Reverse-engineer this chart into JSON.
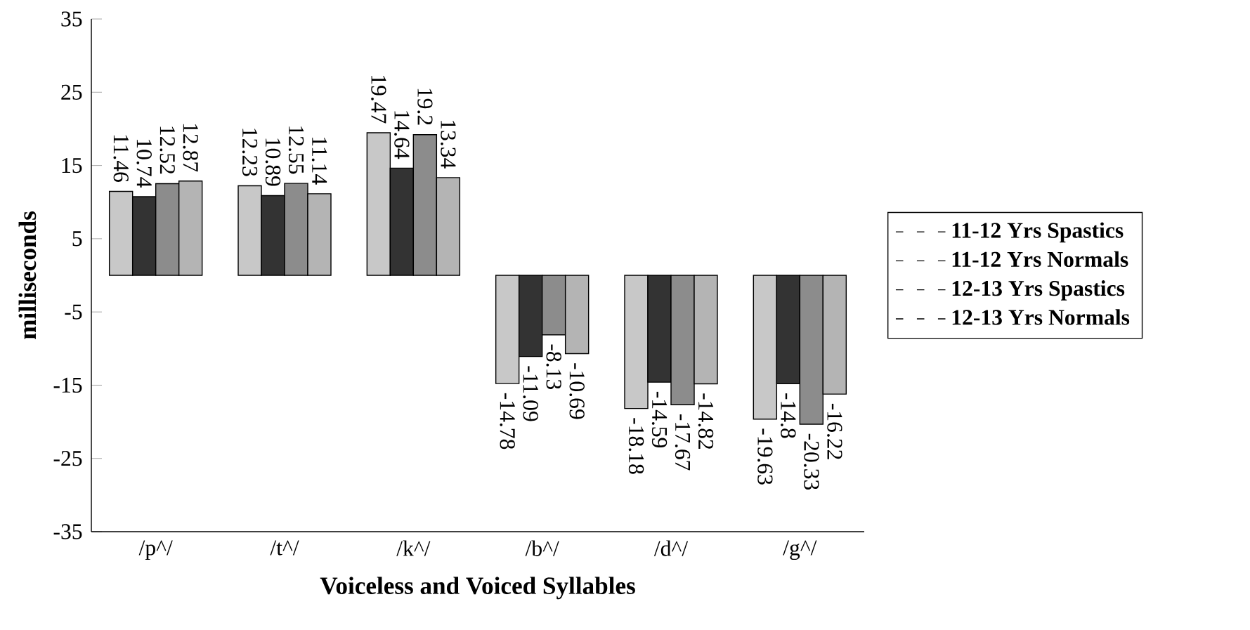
{
  "chart_data": {
    "type": "bar",
    "xlabel": "Voiceless and Voiced Syllables",
    "ylabel": "milliseconds",
    "categories": [
      "/p^/",
      "/t^/",
      "/k^/",
      "/b^/",
      "/d^/",
      "/g^/"
    ],
    "ylim": [
      -35,
      35
    ],
    "yticks": [
      -35,
      -25,
      -15,
      -5,
      5,
      15,
      25,
      35
    ],
    "legend": "right",
    "series": [
      {
        "name": "11-12 Yrs Spastics",
        "color": "#c8c8c8",
        "values": [
          11.46,
          12.23,
          19.47,
          -14.78,
          -18.18,
          -19.63
        ],
        "value_labels": [
          "11.46",
          "12.23",
          "19.47",
          "-14.78",
          "-18.18",
          "-19.63"
        ]
      },
      {
        "name": "11-12 Yrs Normals",
        "color": "#333333",
        "values": [
          10.74,
          10.89,
          14.64,
          -11.09,
          -14.59,
          -14.8
        ],
        "value_labels": [
          "10.74",
          "10.89",
          "14.64",
          "-11.09",
          "-14.59",
          "-14.8"
        ]
      },
      {
        "name": "12-13 Yrs Spastics",
        "color": "#8c8c8c",
        "values": [
          12.52,
          12.55,
          19.2,
          -8.13,
          -17.67,
          -20.33
        ],
        "value_labels": [
          "12.52",
          "12.55",
          "19.2",
          "-8.13",
          "-17.67",
          "-20.33"
        ]
      },
      {
        "name": "12-13 Yrs Normals",
        "color": "#b4b4b4",
        "values": [
          12.87,
          11.14,
          13.34,
          -10.69,
          -14.82,
          -16.22
        ],
        "value_labels": [
          "12.87",
          "11.14",
          "13.34",
          "-10.69",
          "-14.82",
          "-16.22"
        ]
      }
    ]
  }
}
